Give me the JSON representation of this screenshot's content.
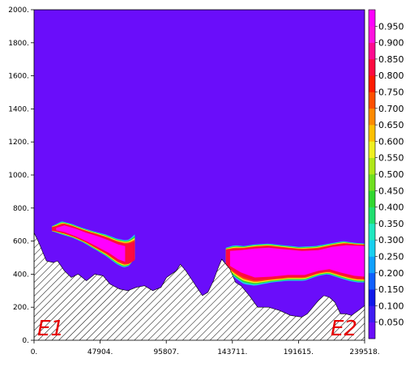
{
  "chart_data": {
    "type": "heatmap",
    "title": "",
    "xlabel": "",
    "ylabel": "",
    "x_ticks": [
      "0.",
      "47904.",
      "95807.",
      "143711.",
      "191615.",
      "239518."
    ],
    "y_ticks": [
      "0.",
      "200.",
      "400.",
      "600.",
      "800.",
      "1000.",
      "1200.",
      "1400.",
      "1600.",
      "1800.",
      "2000."
    ],
    "xlim": [
      0,
      239518
    ],
    "ylim": [
      0,
      2000
    ],
    "colorbar": {
      "levels": [
        0.05,
        0.1,
        0.15,
        0.2,
        0.25,
        0.3,
        0.35,
        0.4,
        0.45,
        0.5,
        0.55,
        0.6,
        0.65,
        0.7,
        0.75,
        0.8,
        0.85,
        0.9,
        0.95
      ],
      "labels": [
        "0.050",
        "0.100",
        "0.150",
        "0.200",
        "0.250",
        "0.300",
        "0.350",
        "0.400",
        "0.450",
        "0.500",
        "0.550",
        "0.600",
        "0.650",
        "0.700",
        "0.750",
        "0.800",
        "0.850",
        "0.900",
        "0.950"
      ],
      "colors": [
        "#6a0dfa",
        "#3f1cf3",
        "#1018ea",
        "#1060ff",
        "#10a0ff",
        "#18d0f0",
        "#20e8c0",
        "#20e070",
        "#30d830",
        "#70e020",
        "#b0e818",
        "#f0f020",
        "#ffc000",
        "#ff8a00",
        "#ff5000",
        "#ff1a00",
        "#ff0a40",
        "#ff0a90",
        "#ff10e0",
        "#ff00ff"
      ]
    },
    "background_value": 0.0,
    "terrain": [
      [
        0,
        650
      ],
      [
        3000,
        600
      ],
      [
        9000,
        480
      ],
      [
        14000,
        470
      ],
      [
        17000,
        480
      ],
      [
        22000,
        420
      ],
      [
        27000,
        380
      ],
      [
        32000,
        400
      ],
      [
        38000,
        360
      ],
      [
        44000,
        400
      ],
      [
        50000,
        390
      ],
      [
        55000,
        340
      ],
      [
        62000,
        310
      ],
      [
        68000,
        300
      ],
      [
        74000,
        320
      ],
      [
        80000,
        330
      ],
      [
        86000,
        300
      ],
      [
        92000,
        320
      ],
      [
        96000,
        380
      ],
      [
        103000,
        420
      ],
      [
        106000,
        460
      ],
      [
        110000,
        420
      ],
      [
        114000,
        370
      ],
      [
        118000,
        320
      ],
      [
        122000,
        270
      ],
      [
        126000,
        290
      ],
      [
        130000,
        360
      ],
      [
        133000,
        430
      ],
      [
        136000,
        490
      ],
      [
        139000,
        460
      ],
      [
        142000,
        430
      ],
      [
        146000,
        350
      ],
      [
        150000,
        330
      ],
      [
        156000,
        270
      ],
      [
        162000,
        200
      ],
      [
        170000,
        200
      ],
      [
        178000,
        180
      ],
      [
        186000,
        150
      ],
      [
        194000,
        140
      ],
      [
        198000,
        160
      ],
      [
        202000,
        200
      ],
      [
        206000,
        240
      ],
      [
        210000,
        270
      ],
      [
        214000,
        260
      ],
      [
        218000,
        230
      ],
      [
        222000,
        160
      ],
      [
        226000,
        160
      ],
      [
        230000,
        150
      ],
      [
        235000,
        180
      ],
      [
        239518,
        210
      ]
    ],
    "plumes": [
      {
        "name": "E1",
        "extent_x": [
          13000,
          73000
        ],
        "outer_top": [
          [
            13000,
            690
          ],
          [
            20000,
            720
          ],
          [
            27000,
            705
          ],
          [
            35000,
            680
          ],
          [
            43000,
            660
          ],
          [
            52000,
            640
          ],
          [
            60000,
            615
          ],
          [
            66000,
            605
          ],
          [
            69000,
            610
          ],
          [
            73000,
            640
          ]
        ],
        "outer_bottom": [
          [
            13000,
            660
          ],
          [
            20000,
            640
          ],
          [
            28000,
            620
          ],
          [
            36000,
            590
          ],
          [
            44000,
            550
          ],
          [
            52000,
            510
          ],
          [
            60000,
            460
          ],
          [
            65000,
            440
          ],
          [
            69000,
            450
          ],
          [
            73000,
            500
          ]
        ],
        "core_top": [
          [
            16000,
            680
          ],
          [
            22000,
            695
          ],
          [
            30000,
            675
          ],
          [
            38000,
            650
          ],
          [
            46000,
            630
          ],
          [
            54000,
            605
          ],
          [
            61000,
            580
          ],
          [
            66000,
            570
          ]
        ],
        "core_bottom": [
          [
            16000,
            665
          ],
          [
            22000,
            655
          ],
          [
            30000,
            630
          ],
          [
            38000,
            600
          ],
          [
            46000,
            565
          ],
          [
            54000,
            530
          ],
          [
            61000,
            490
          ],
          [
            66000,
            475
          ]
        ]
      },
      {
        "name": "E2",
        "extent_x": [
          139000,
          239518
        ],
        "outer_top": [
          [
            139000,
            560
          ],
          [
            145000,
            575
          ],
          [
            152000,
            570
          ],
          [
            160000,
            580
          ],
          [
            170000,
            585
          ],
          [
            180000,
            575
          ],
          [
            192000,
            565
          ],
          [
            204000,
            570
          ],
          [
            214000,
            585
          ],
          [
            224000,
            600
          ],
          [
            232000,
            590
          ],
          [
            239518,
            585
          ]
        ],
        "outer_bottom": [
          [
            139000,
            440
          ],
          [
            145000,
            380
          ],
          [
            152000,
            340
          ],
          [
            160000,
            330
          ],
          [
            172000,
            350
          ],
          [
            184000,
            360
          ],
          [
            196000,
            360
          ],
          [
            206000,
            390
          ],
          [
            213000,
            400
          ],
          [
            220000,
            380
          ],
          [
            228000,
            360
          ],
          [
            234000,
            350
          ],
          [
            239518,
            350
          ]
        ],
        "core_top": [
          [
            142000,
            540
          ],
          [
            150000,
            545
          ],
          [
            160000,
            555
          ],
          [
            170000,
            560
          ],
          [
            182000,
            550
          ],
          [
            194000,
            540
          ],
          [
            206000,
            545
          ],
          [
            216000,
            565
          ],
          [
            226000,
            575
          ],
          [
            239518,
            570
          ]
        ],
        "core_bottom": [
          [
            142000,
            450
          ],
          [
            150000,
            410
          ],
          [
            160000,
            380
          ],
          [
            172000,
            385
          ],
          [
            184000,
            395
          ],
          [
            196000,
            395
          ],
          [
            206000,
            420
          ],
          [
            214000,
            430
          ],
          [
            222000,
            410
          ],
          [
            232000,
            390
          ],
          [
            239518,
            385
          ]
        ]
      }
    ],
    "annotations": [
      "E1",
      "E2"
    ]
  }
}
